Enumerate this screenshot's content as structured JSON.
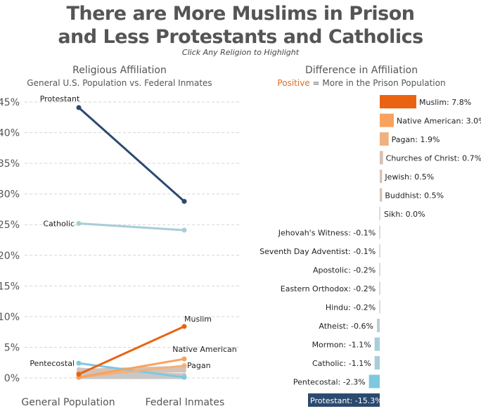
{
  "header": {
    "title_line1": "There are More Muslims in Prison",
    "title_line2": "and Less Protestants and Catholics",
    "subtitle": "Click Any Religion to Highlight"
  },
  "chart_data": [
    {
      "type": "line",
      "title": "Religious Affiliation",
      "subtitle": "General U.S. Population vs. Federal Inmates",
      "x": [
        "General Population",
        "Federal Inmates"
      ],
      "ylabel": "",
      "ylim": [
        0,
        45
      ],
      "yticks": [
        0,
        5,
        10,
        15,
        20,
        25,
        30,
        35,
        40,
        45
      ],
      "ytick_labels": [
        "0%",
        "5%",
        "10%",
        "15%",
        "20%",
        "25%",
        "30%",
        "35%",
        "40%",
        "45%"
      ],
      "grid": true,
      "series": [
        {
          "name": "Protestant",
          "values": [
            44.1,
            28.8
          ],
          "color": "#2b4a6f",
          "labeled": true,
          "label_side": "start"
        },
        {
          "name": "Catholic",
          "values": [
            25.2,
            24.1
          ],
          "color": "#a7cdd8",
          "labeled": true,
          "label_side": "start"
        },
        {
          "name": "Pentecostal",
          "values": [
            2.4,
            0.1
          ],
          "color": "#7ec8e0",
          "labeled": true,
          "label_side": "start"
        },
        {
          "name": "Mormon",
          "values": [
            1.4,
            0.3
          ],
          "color": "#c8c8c8",
          "labeled": false
        },
        {
          "name": "Atheist",
          "values": [
            1.0,
            0.4
          ],
          "color": "#c8c8c8",
          "labeled": false
        },
        {
          "name": "Churches of Christ",
          "values": [
            0.9,
            1.6
          ],
          "color": "#d5c2b4",
          "labeled": false
        },
        {
          "name": "Jewish",
          "values": [
            1.2,
            1.7
          ],
          "color": "#d5c2b4",
          "labeled": false
        },
        {
          "name": "Buddhist",
          "values": [
            0.7,
            1.2
          ],
          "color": "#d5c2b4",
          "labeled": false
        },
        {
          "name": "Hindu",
          "values": [
            0.4,
            0.2
          ],
          "color": "#c8c8c8",
          "labeled": false
        },
        {
          "name": "Eastern Orthodox",
          "values": [
            0.4,
            0.2
          ],
          "color": "#c8c8c8",
          "labeled": false
        },
        {
          "name": "Seventh Day Adventist",
          "values": [
            0.3,
            0.2
          ],
          "color": "#c8c8c8",
          "labeled": false
        },
        {
          "name": "Jehovah's Witness",
          "values": [
            0.6,
            0.5
          ],
          "color": "#c8c8c8",
          "labeled": false
        },
        {
          "name": "Apostolic",
          "values": [
            0.3,
            0.1
          ],
          "color": "#c8c8c8",
          "labeled": false
        },
        {
          "name": "Sikh",
          "values": [
            0.1,
            0.1
          ],
          "color": "#c8c8c8",
          "labeled": false
        },
        {
          "name": "Pagan",
          "values": [
            0.1,
            2.0
          ],
          "color": "#efb27f",
          "labeled": true,
          "label_side": "end"
        },
        {
          "name": "Native American",
          "values": [
            0.1,
            3.1
          ],
          "color": "#f9a15e",
          "labeled": true,
          "label_side": "end"
        },
        {
          "name": "Muslim",
          "values": [
            0.6,
            8.4
          ],
          "color": "#ea6312",
          "labeled": true,
          "label_side": "end"
        }
      ]
    },
    {
      "type": "bar",
      "orientation": "horizontal",
      "title": "Difference in Affiliation",
      "subtitle_highlight": "Positive",
      "subtitle_rest": " = More in the Prison Population",
      "subtitle_highlight_color": "#e36b1c",
      "categories": [
        "Muslim",
        "Native American",
        "Pagan",
        "Churches of Christ",
        "Jewish",
        "Buddhist",
        "Sikh",
        "Jehovah's Witness",
        "Seventh Day Adventist",
        "Apostolic",
        "Eastern Orthodox",
        "Hindu",
        "Atheist",
        "Mormon",
        "Catholic",
        "Pentecostal",
        "Protestant"
      ],
      "values": [
        7.8,
        3.0,
        1.9,
        0.7,
        0.5,
        0.5,
        0.0,
        -0.1,
        -0.1,
        -0.2,
        -0.2,
        -0.2,
        -0.6,
        -1.1,
        -1.1,
        -2.3,
        -15.3
      ],
      "labels": [
        "Muslim: 7.8%",
        "Native American: 3.0%",
        "Pagan: 1.9%",
        "Churches of Christ: 0.7%",
        "Jewish: 0.5%",
        "Buddhist: 0.5%",
        "Sikh: 0.0%",
        "Jehovah's Witness: -0.1%",
        "Seventh Day Adventist: -0.1%",
        "Apostolic: -0.2%",
        "Eastern Orthodox: -0.2%",
        "Hindu: -0.2%",
        "Atheist: -0.6%",
        "Mormon: -1.1%",
        "Catholic: -1.1%",
        "Pentecostal: -2.3%",
        "Protestant: -15.3%"
      ],
      "colors": [
        "#ea6312",
        "#f9a15e",
        "#efb27f",
        "#d5c2b4",
        "#d5c2b4",
        "#d5c2b4",
        "#d0d0d0",
        "#d0d0d0",
        "#d0d0d0",
        "#d0d0d0",
        "#d0d0d0",
        "#d0d0d0",
        "#b9cdd6",
        "#a7cdd8",
        "#a7cdd8",
        "#7ec8e0",
        "#2b4a6f"
      ],
      "label_inside": [
        false,
        false,
        false,
        false,
        false,
        false,
        false,
        false,
        false,
        false,
        false,
        false,
        false,
        false,
        false,
        false,
        true
      ]
    }
  ]
}
